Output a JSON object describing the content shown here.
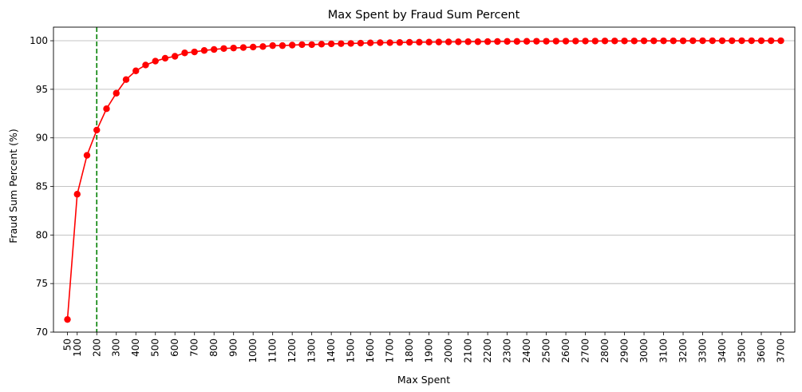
{
  "chart_data": {
    "type": "line",
    "title": "Max Spent by Fraud Sum Percent",
    "xlabel": "Max Spent",
    "ylabel": "Fraud Sum Percent (%)",
    "x": [
      50,
      100,
      150,
      200,
      250,
      300,
      350,
      400,
      450,
      500,
      550,
      600,
      650,
      700,
      750,
      800,
      850,
      900,
      950,
      1000,
      1050,
      1100,
      1150,
      1200,
      1250,
      1300,
      1350,
      1400,
      1450,
      1500,
      1550,
      1600,
      1650,
      1700,
      1750,
      1800,
      1850,
      1900,
      1950,
      2000,
      2050,
      2100,
      2150,
      2200,
      2250,
      2300,
      2350,
      2400,
      2450,
      2500,
      2550,
      2600,
      2650,
      2700,
      2750,
      2800,
      2850,
      2900,
      2950,
      3000,
      3050,
      3100,
      3150,
      3200,
      3250,
      3300,
      3350,
      3400,
      3450,
      3500,
      3550,
      3600,
      3650,
      3700
    ],
    "series": [
      {
        "values": [
          71.3,
          84.2,
          88.2,
          90.8,
          93.0,
          94.6,
          96.0,
          96.9,
          97.5,
          97.9,
          98.2,
          98.4,
          98.75,
          98.85,
          99.0,
          99.1,
          99.2,
          99.25,
          99.3,
          99.35,
          99.4,
          99.5,
          99.5,
          99.55,
          99.6,
          99.6,
          99.65,
          99.68,
          99.7,
          99.72,
          99.75,
          99.78,
          99.8,
          99.8,
          99.82,
          99.84,
          99.85,
          99.86,
          99.87,
          99.88,
          99.89,
          99.9,
          99.9,
          99.91,
          99.92,
          99.93,
          99.93,
          99.94,
          99.95,
          99.95,
          99.96,
          99.96,
          99.97,
          99.97,
          99.97,
          99.98,
          99.98,
          99.98,
          99.98,
          99.99,
          99.99,
          99.99,
          99.99,
          99.99,
          100.0,
          100.0,
          100.0,
          100.0,
          100.0,
          100.0,
          100.0,
          100.0,
          100.0,
          100.0
        ],
        "color": "#ff0000"
      }
    ],
    "xticks": [
      "50",
      "100",
      "200",
      "300",
      "400",
      "500",
      "600",
      "700",
      "800",
      "900",
      "1000",
      "1100",
      "1200",
      "1300",
      "1400",
      "1500",
      "1600",
      "1700",
      "1800",
      "1900",
      "2000",
      "2100",
      "2200",
      "2300",
      "2400",
      "2500",
      "2600",
      "2700",
      "2800",
      "2900",
      "3000",
      "3100",
      "3200",
      "3300",
      "3400",
      "3500",
      "3600",
      "3700"
    ],
    "yticks": [
      70,
      75,
      80,
      85,
      90,
      95,
      100
    ],
    "ylim": [
      70,
      101.4
    ],
    "xlim": [
      -21.5,
      3771.5
    ],
    "vline": {
      "x": 200,
      "color": "#008000",
      "style": "dashed"
    },
    "grid": "horizontal",
    "marker": "circle"
  }
}
